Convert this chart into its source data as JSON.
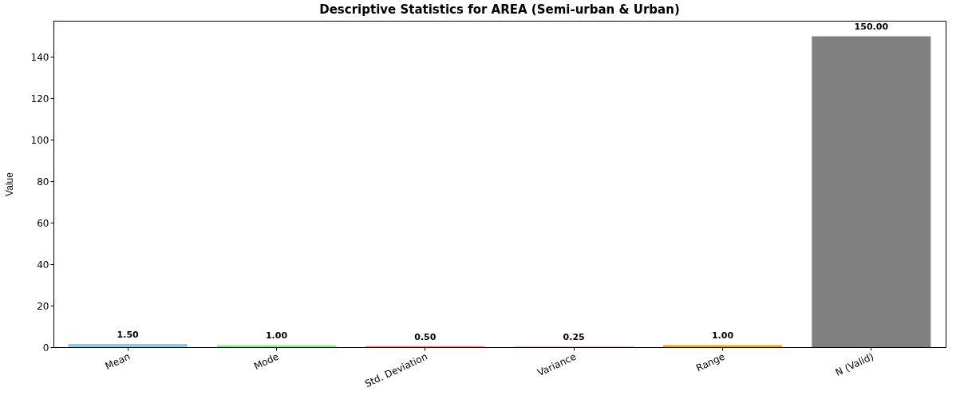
{
  "chart_data": {
    "type": "bar",
    "title": "Descriptive Statistics for AREA (Semi-urban & Urban)",
    "ylabel": "Value",
    "categories": [
      "Mean",
      "Mode",
      "Std. Deviation",
      "Variance",
      "Range",
      "N (Valid)"
    ],
    "values": [
      1.5,
      1.0,
      0.5,
      0.25,
      1.0,
      150.0
    ],
    "colors": [
      "#87ceeb",
      "#90ee90",
      "#fa8072",
      "#dda0dd",
      "#ffa500",
      "#808080"
    ],
    "value_labels": [
      "1.50",
      "1.00",
      "0.50",
      "0.25",
      "1.00",
      "150.00"
    ],
    "ylim": [
      0,
      157.5
    ],
    "yticks": [
      0,
      20,
      40,
      60,
      80,
      100,
      120,
      140
    ],
    "grid": false
  }
}
